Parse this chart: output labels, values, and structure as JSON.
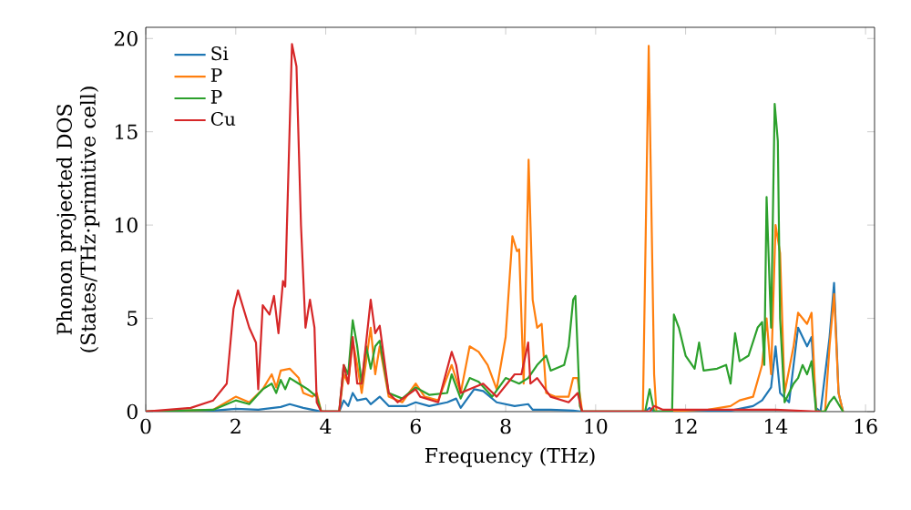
{
  "chart_data": {
    "type": "line",
    "xlabel": "Frequency (THz)",
    "ylabel": "Phonon projected DOS (States/THz·primitive cell)",
    "xlim": [
      0,
      16.2
    ],
    "ylim": [
      0,
      20.6
    ],
    "xticks": [
      0,
      2,
      4,
      6,
      8,
      10,
      12,
      14,
      16
    ],
    "yticks": [
      0,
      5,
      10,
      15,
      20
    ],
    "legend": "top left",
    "grid": false,
    "marker": "none",
    "line_style": "solid",
    "series": [
      {
        "name": "Si",
        "color": "#1f77b4",
        "x": [
          0,
          1.5,
          2,
          2.5,
          3,
          3.2,
          3.5,
          3.8,
          3.9,
          4.3,
          4.4,
          4.5,
          4.6,
          4.7,
          4.9,
          5.0,
          5.2,
          5.4,
          5.8,
          6.0,
          6.3,
          6.7,
          6.9,
          7.0,
          7.3,
          7.5,
          7.8,
          8.2,
          8.5,
          8.6,
          9.0,
          9.5,
          9.7,
          11.1,
          11.2,
          11.3,
          13.0,
          13.5,
          13.7,
          13.9,
          14.0,
          14.1,
          14.3,
          14.5,
          14.7,
          14.8,
          14.9,
          15.0,
          15.2,
          15.3,
          15.4,
          15.5
        ],
        "values": [
          0,
          0.05,
          0.15,
          0.1,
          0.25,
          0.4,
          0.2,
          0.05,
          0,
          0,
          0.6,
          0.3,
          1.0,
          0.6,
          0.7,
          0.4,
          0.8,
          0.3,
          0.3,
          0.5,
          0.3,
          0.5,
          0.7,
          0.2,
          1.2,
          1.1,
          0.5,
          0.3,
          0.4,
          0.1,
          0.1,
          0.05,
          0,
          0,
          0.2,
          0,
          0.05,
          0.3,
          0.6,
          1.3,
          3.5,
          1.0,
          0.5,
          4.5,
          3.5,
          4.0,
          0.2,
          0,
          4.0,
          6.9,
          1.0,
          0
        ]
      },
      {
        "name": "P",
        "color": "#ff7f0e",
        "x": [
          0,
          1.5,
          2,
          2.3,
          2.6,
          2.8,
          2.9,
          3.0,
          3.2,
          3.4,
          3.5,
          3.7,
          3.8,
          3.9,
          4.3,
          4.4,
          4.5,
          4.6,
          4.7,
          4.8,
          5.0,
          5.1,
          5.2,
          5.4,
          5.7,
          6.0,
          6.2,
          6.5,
          6.8,
          7.0,
          7.2,
          7.4,
          7.6,
          7.8,
          8.0,
          8.15,
          8.25,
          8.3,
          8.4,
          8.51,
          8.6,
          8.7,
          8.8,
          8.9,
          9.1,
          9.4,
          9.5,
          9.6,
          9.7,
          11.05,
          11.18,
          11.3,
          11.35,
          12.5,
          13.0,
          13.2,
          13.5,
          13.7,
          13.8,
          13.9,
          14.0,
          14.1,
          14.2,
          14.4,
          14.5,
          14.6,
          14.7,
          14.8,
          14.9,
          15.1,
          15.2,
          15.3,
          15.4,
          15.5
        ],
        "values": [
          0,
          0.1,
          0.8,
          0.5,
          1.2,
          2.0,
          1.3,
          2.2,
          2.3,
          1.8,
          1.0,
          0.8,
          1.0,
          0,
          0,
          2.0,
          1.5,
          3.8,
          2.5,
          1.0,
          4.5,
          2.0,
          3.5,
          0.8,
          0.5,
          1.5,
          0.8,
          0.6,
          2.5,
          1.0,
          3.5,
          3.2,
          2.5,
          1.2,
          4.0,
          9.4,
          8.6,
          8.7,
          1.5,
          13.5,
          6.0,
          4.5,
          4.7,
          1.0,
          0.8,
          0.8,
          1.8,
          1.8,
          0,
          0,
          19.6,
          2.0,
          0,
          0.1,
          0.3,
          0.6,
          0.8,
          2.5,
          5.0,
          2.0,
          10.0,
          8.5,
          1.0,
          3.5,
          5.3,
          5.0,
          4.7,
          5.3,
          0,
          0,
          3.5,
          6.3,
          1.0,
          0
        ]
      },
      {
        "name": "P",
        "color": "#2ca02c",
        "x": [
          0,
          1.5,
          2,
          2.3,
          2.6,
          2.8,
          2.9,
          3.0,
          3.1,
          3.2,
          3.4,
          3.6,
          3.8,
          3.9,
          4.3,
          4.4,
          4.5,
          4.6,
          4.7,
          4.8,
          4.9,
          5.0,
          5.1,
          5.2,
          5.4,
          5.7,
          6.0,
          6.3,
          6.7,
          6.8,
          7.0,
          7.2,
          7.4,
          7.7,
          8.0,
          8.3,
          8.5,
          8.7,
          8.9,
          9.0,
          9.3,
          9.4,
          9.5,
          9.55,
          9.65,
          9.7,
          11.1,
          11.2,
          11.3,
          11.7,
          11.74,
          11.85,
          12.0,
          12.2,
          12.3,
          12.4,
          12.7,
          12.9,
          13.0,
          13.1,
          13.2,
          13.4,
          13.6,
          13.7,
          13.75,
          13.8,
          13.9,
          13.98,
          14.05,
          14.1,
          14.2,
          14.4,
          14.5,
          14.6,
          14.7,
          14.8,
          14.9,
          15.1,
          15.2,
          15.3,
          15.5
        ],
        "values": [
          0,
          0.1,
          0.6,
          0.4,
          1.2,
          1.5,
          1.0,
          1.7,
          1.2,
          1.8,
          1.5,
          1.2,
          0.8,
          0,
          0,
          2.5,
          2.0,
          4.9,
          3.5,
          1.5,
          3.5,
          2.3,
          3.5,
          3.8,
          1.0,
          0.7,
          1.3,
          0.9,
          1.0,
          2.0,
          0.7,
          1.8,
          1.6,
          0.8,
          1.8,
          1.5,
          1.8,
          2.5,
          3.0,
          2.2,
          2.5,
          3.5,
          6.0,
          6.2,
          0.3,
          0,
          0,
          1.2,
          0,
          0,
          5.2,
          4.5,
          3.0,
          2.3,
          3.7,
          2.2,
          2.3,
          2.5,
          1.5,
          4.2,
          2.7,
          3.0,
          4.5,
          4.8,
          2.5,
          11.5,
          4.5,
          16.5,
          14.5,
          5.0,
          0.5,
          1.5,
          1.8,
          2.5,
          2.0,
          2.7,
          0,
          0,
          0.5,
          0.8,
          0
        ]
      },
      {
        "name": "Cu",
        "color": "#d62728",
        "x": [
          0,
          1,
          1.5,
          1.8,
          1.95,
          2.05,
          2.3,
          2.45,
          2.5,
          2.6,
          2.75,
          2.85,
          2.95,
          3.05,
          3.1,
          3.25,
          3.35,
          3.45,
          3.55,
          3.65,
          3.75,
          3.8,
          3.9,
          4.3,
          4.4,
          4.5,
          4.6,
          4.7,
          4.8,
          5.0,
          5.1,
          5.2,
          5.4,
          5.6,
          6.0,
          6.1,
          6.5,
          6.8,
          6.9,
          7.0,
          7.3,
          7.5,
          7.8,
          8.2,
          8.35,
          8.5,
          8.55,
          8.7,
          9.0,
          9.4,
          9.6,
          9.7,
          11.2,
          11.3,
          11.5,
          14,
          15
        ],
        "values": [
          0,
          0.2,
          0.6,
          1.5,
          5.5,
          6.5,
          4.5,
          3.7,
          1.2,
          5.7,
          5.2,
          6.2,
          4.2,
          7.0,
          6.7,
          19.7,
          18.5,
          10,
          4.5,
          6,
          4.5,
          0.5,
          0,
          0,
          2.5,
          1.5,
          4,
          1.5,
          1.5,
          6.0,
          4.2,
          4.6,
          1.0,
          0.5,
          1.2,
          0.8,
          0.5,
          3.2,
          2.5,
          1.0,
          1.3,
          1.5,
          0.8,
          2.0,
          2.0,
          3.7,
          1.5,
          1.8,
          0.8,
          0.5,
          1.0,
          0,
          0,
          0.3,
          0.1,
          0.1,
          0
        ]
      }
    ]
  }
}
